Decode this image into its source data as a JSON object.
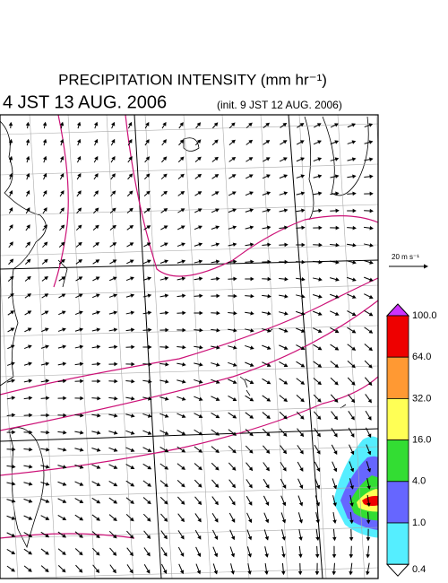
{
  "header": {
    "title": "PRECIPITATION INTENSITY (mm hr⁻¹)",
    "valid_time": "4 JST 13 AUG. 2006",
    "init_time": "(init. 9 JST 12 AUG. 2006)"
  },
  "wind_scale": {
    "label": "20 m s⁻¹"
  },
  "colorbar": {
    "ticks": [
      {
        "value": 100,
        "label": "100.0"
      },
      {
        "value": 64,
        "label": "64.0"
      },
      {
        "value": 32,
        "label": "32.0"
      },
      {
        "value": 16,
        "label": "16.0"
      },
      {
        "value": 4,
        "label": "4.0"
      },
      {
        "value": 1,
        "label": "1.0"
      },
      {
        "value": 0.4,
        "label": "0.4"
      }
    ],
    "colors": [
      "#cc33ff",
      "#ee0000",
      "#ff9933",
      "#ffff55",
      "#33dd33",
      "#6666ff",
      "#55eeff",
      "#ffffff"
    ]
  }
}
